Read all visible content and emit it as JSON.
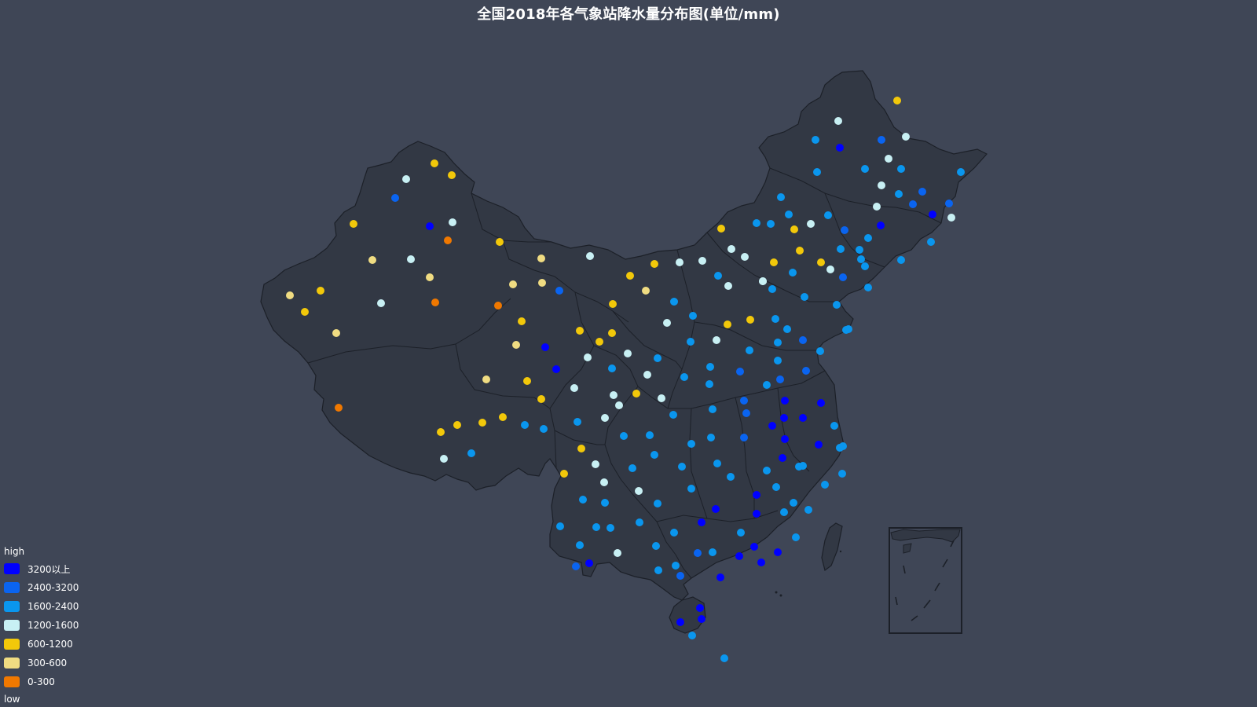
{
  "title": "全国2018年各气象站降水量分布图(单位/mm)",
  "visual_map": {
    "high_label": "high",
    "low_label": "low",
    "pieces": [
      {
        "label": "3200以上",
        "color": "#0000ff"
      },
      {
        "label": "2400-3200",
        "color": "#0a64f0"
      },
      {
        "label": "1600-2400",
        "color": "#0a96ee"
      },
      {
        "label": "1200-1600",
        "color": "#c8f0f4"
      },
      {
        "label": "600-1200",
        "color": "#f2c80a"
      },
      {
        "label": "300-600",
        "color": "#f0dc82"
      },
      {
        "label": "0-300",
        "color": "#f07800"
      }
    ]
  },
  "map_style": {
    "land": "#323844",
    "border": "#1c2028",
    "background": "#3f4656"
  }
}
